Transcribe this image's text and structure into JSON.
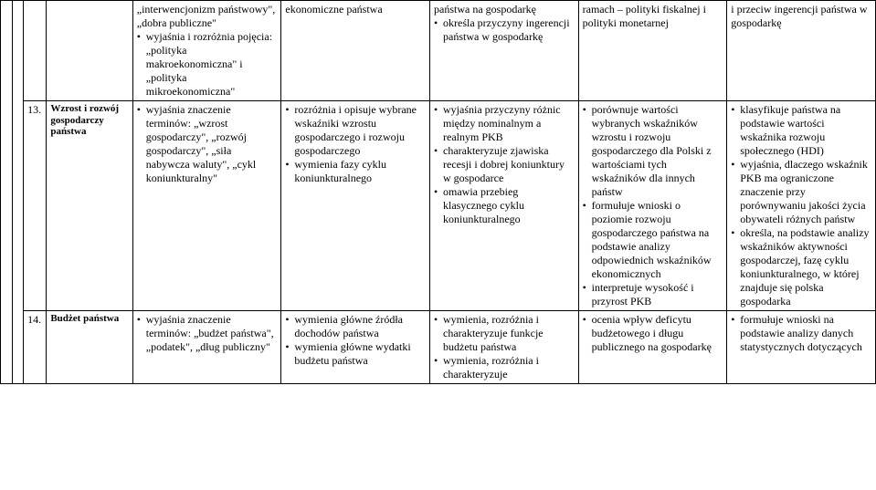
{
  "rows": [
    {
      "num": "",
      "label": "",
      "cols": [
        {
          "prefix": "„interwencjonizm państwowy\", „dobra publiczne\"",
          "items": [
            "wyjaśnia i rozróżnia pojęcia: „polityka makroekonomiczna\" i „polityka mikroekonomiczna\""
          ]
        },
        {
          "prefix": "ekonomiczne państwa",
          "items": []
        },
        {
          "prefix": "państwa na gospodarkę",
          "items": [
            "określa przyczyny ingerencji państwa w gospodarkę"
          ]
        },
        {
          "prefix": "ramach – polityki fiskalnej i polityki monetarnej",
          "items": []
        },
        {
          "prefix": "i przeciw ingerencji państwa w gospodarkę",
          "items": []
        }
      ]
    },
    {
      "num": "13.",
      "label": "Wzrost i rozwój gospodarczy państwa",
      "cols": [
        {
          "prefix": "",
          "items": [
            "wyjaśnia znaczenie terminów: „wzrost gospodarczy\", „rozwój gospodarczy\", „siła nabywcza waluty\", „cykl koniunkturalny\""
          ]
        },
        {
          "prefix": "",
          "items": [
            "rozróżnia i opisuje wybrane wskaźniki wzrostu gospodarczego i rozwoju gospodarczego",
            "wymienia fazy cyklu koniunkturalnego"
          ]
        },
        {
          "prefix": "",
          "items": [
            "wyjaśnia przyczyny różnic między nominalnym a realnym PKB",
            "charakteryzuje zjawiska recesji i dobrej koniunktury w gospodarce",
            "omawia przebieg klasycznego cyklu koniunkturalnego"
          ]
        },
        {
          "prefix": "",
          "items": [
            "porównuje wartości wybranych wskaźników wzrostu i rozwoju gospodarczego dla Polski z wartościami tych wskaźników dla innych państw",
            "formułuje wnioski o poziomie rozwoju gospodarczego państwa na podstawie analizy odpowiednich wskaźników ekonomicznych",
            "interpretuje wysokość i przyrost PKB"
          ]
        },
        {
          "prefix": "",
          "items": [
            "klasyfikuje państwa na podstawie wartości wskaźnika rozwoju społecznego (HDI)",
            "wyjaśnia, dlaczego wskaźnik PKB ma ograniczone znaczenie przy porównywaniu jakości życia obywateli różnych państw",
            "określa, na podstawie analizy wskaźników aktywności gospodarczej, fazę cyklu koniunkturalnego, w której znajduje się polska gospodarka"
          ]
        }
      ]
    },
    {
      "num": "14.",
      "label": "Budżet państwa",
      "cols": [
        {
          "prefix": "",
          "items": [
            "wyjaśnia znaczenie terminów: „budżet państwa\", „podatek\", „dług publiczny\""
          ]
        },
        {
          "prefix": "",
          "items": [
            "wymienia główne źródła dochodów państwa",
            "wymienia główne wydatki budżetu państwa"
          ]
        },
        {
          "prefix": "",
          "items": [
            "wymienia, rozróżnia i charakteryzuje funkcje budżetu państwa",
            "wymienia, rozróżnia i charakteryzuje"
          ]
        },
        {
          "prefix": "",
          "items": [
            "ocenia wpływ deficytu budżetowego i długu publicznego na gospodarkę"
          ]
        },
        {
          "prefix": "",
          "items": [
            "formułuje wnioski na podstawie analizy danych statystycznych dotyczących"
          ]
        }
      ]
    }
  ]
}
